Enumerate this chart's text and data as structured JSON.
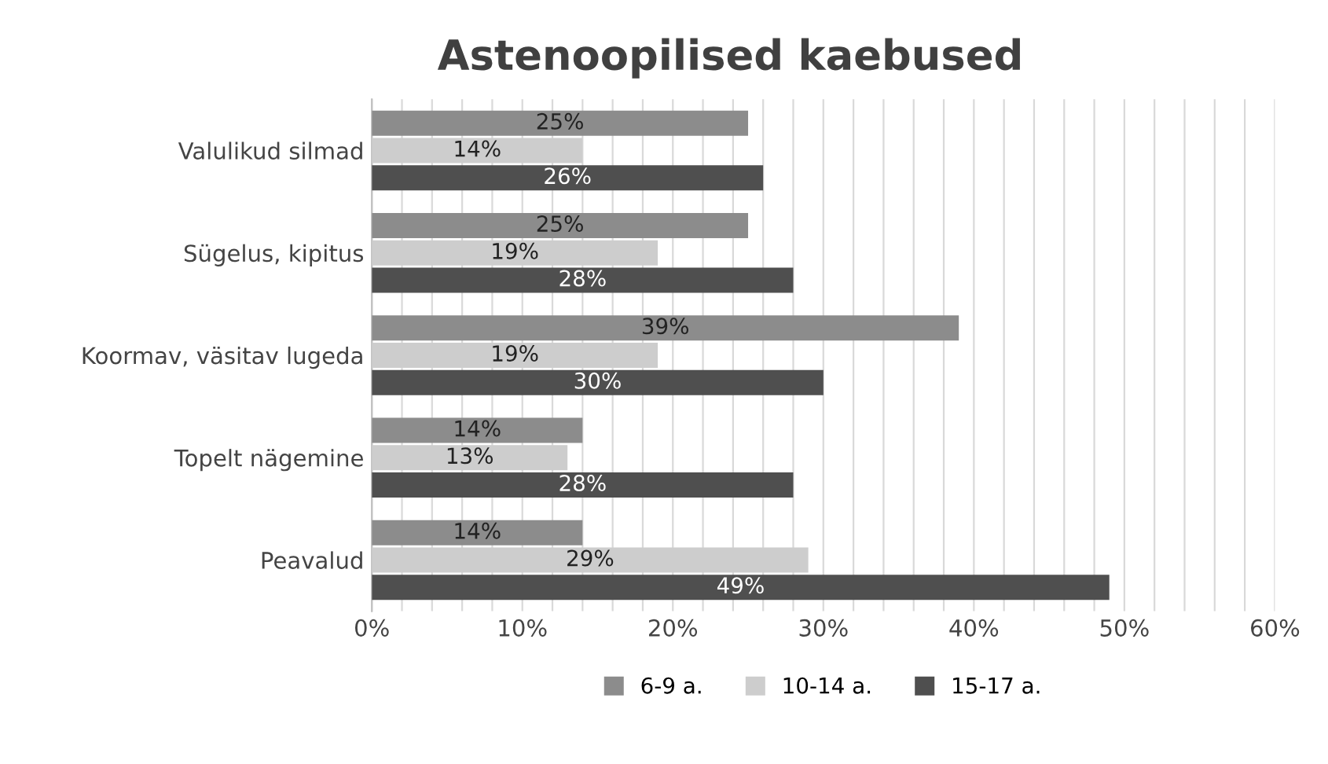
{
  "chart_data": {
    "type": "bar",
    "orientation": "horizontal",
    "title": "Astenoopilised kaebused",
    "categories": [
      "Valulikud silmad",
      "Sügelus, kipitus",
      "Koormav, väsitav lugeda",
      "Topelt nägemine",
      "Peavalud"
    ],
    "series": [
      {
        "name": "6-9 a.",
        "color": "#8c8c8c",
        "values": [
          25,
          25,
          39,
          14,
          14
        ],
        "value_labels": [
          "25%",
          "25%",
          "39%",
          "14%",
          "14%"
        ]
      },
      {
        "name": "10-14 a.",
        "color": "#cdcdcd",
        "values": [
          14,
          19,
          19,
          13,
          29
        ],
        "value_labels": [
          "14%",
          "19%",
          "19%",
          "13%",
          "29%"
        ]
      },
      {
        "name": "15-17 a.",
        "color": "#4f4f4f",
        "values": [
          26,
          28,
          30,
          28,
          49
        ],
        "value_labels": [
          "26%",
          "28%",
          "30%",
          "28%",
          "49%"
        ]
      }
    ],
    "xlim": [
      0,
      60
    ],
    "xticks": [
      {
        "value": 0,
        "label": "0%"
      },
      {
        "value": 2,
        "label": null
      },
      {
        "value": 4,
        "label": null
      },
      {
        "value": 6,
        "label": null
      },
      {
        "value": 8,
        "label": null
      },
      {
        "value": 10,
        "label": "10%"
      },
      {
        "value": 12,
        "label": null
      },
      {
        "value": 14,
        "label": null
      },
      {
        "value": 16,
        "label": null
      },
      {
        "value": 18,
        "label": null
      },
      {
        "value": 20,
        "label": "20%"
      },
      {
        "value": 22,
        "label": null
      },
      {
        "value": 24,
        "label": null
      },
      {
        "value": 26,
        "label": null
      },
      {
        "value": 28,
        "label": null
      },
      {
        "value": 30,
        "label": "30%"
      },
      {
        "value": 32,
        "label": null
      },
      {
        "value": 34,
        "label": null
      },
      {
        "value": 36,
        "label": null
      },
      {
        "value": 38,
        "label": null
      },
      {
        "value": 40,
        "label": "40%"
      },
      {
        "value": 42,
        "label": null
      },
      {
        "value": 44,
        "label": null
      },
      {
        "value": 46,
        "label": null
      },
      {
        "value": 48,
        "label": null
      },
      {
        "value": 50,
        "label": "50%"
      },
      {
        "value": 52,
        "label": null
      },
      {
        "value": 54,
        "label": null
      },
      {
        "value": 56,
        "label": null
      },
      {
        "value": 58,
        "label": null
      },
      {
        "value": 60,
        "label": "60%"
      }
    ],
    "grid": "x",
    "legend": "bottom"
  }
}
